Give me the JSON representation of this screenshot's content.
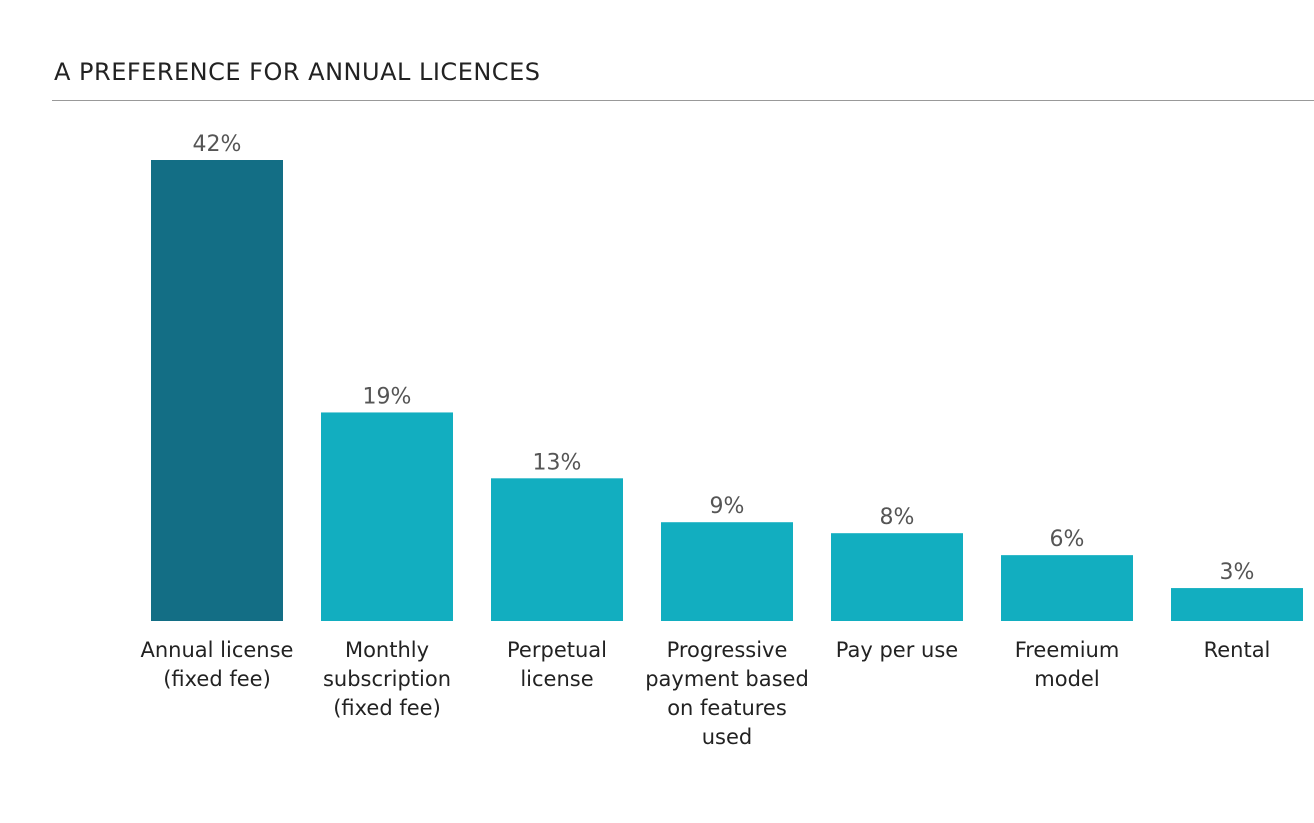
{
  "chart_data": {
    "type": "bar",
    "title": "A PREFERENCE FOR ANNUAL LICENCES",
    "categories": [
      "Annual license (fixed fee)",
      "Monthly subscription (fixed fee)",
      "Perpetual license",
      "Progressive payment based on features used",
      "Pay per use",
      "Freemium model",
      "Rental"
    ],
    "values": [
      42,
      19,
      13,
      9,
      8,
      6,
      3
    ],
    "data_labels": [
      "42%",
      "19%",
      "13%",
      "9%",
      "8%",
      "6%",
      "3%"
    ],
    "unit": "%",
    "grid": false,
    "legend": "none",
    "colors": {
      "highlight": "#136e85",
      "default": "#12aec0",
      "label": "#555555"
    }
  }
}
